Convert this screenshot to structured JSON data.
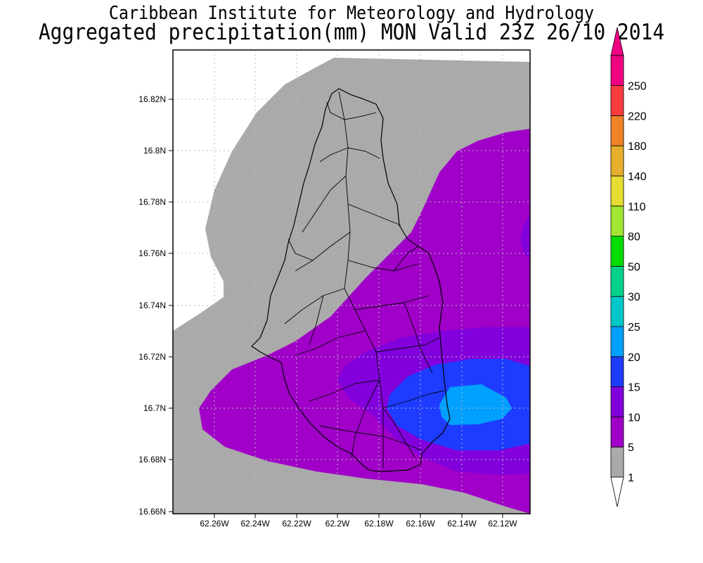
{
  "header": {
    "institute": "Caribbean Institute for Meteorology and Hydrology",
    "product": "Aggregated precipitation(mm) MON Valid 23Z 26/10 2014"
  },
  "map": {
    "y_ticks": [
      "16.82N",
      "16.8N",
      "16.78N",
      "16.76N",
      "16.74N",
      "16.72N",
      "16.7N",
      "16.68N",
      "16.66N"
    ],
    "x_ticks": [
      "62.26W",
      "62.24W",
      "62.22W",
      "62.2W",
      "62.18W",
      "62.16W",
      "62.14W",
      "62.12W"
    ]
  },
  "colorbar": {
    "levels": [
      {
        "label": "1",
        "color": "#aaaaaa"
      },
      {
        "label": "5",
        "color": "#a000c8"
      },
      {
        "label": "10",
        "color": "#8200dc"
      },
      {
        "label": "15",
        "color": "#1e3cff"
      },
      {
        "label": "20",
        "color": "#00a0ff"
      },
      {
        "label": "25",
        "color": "#00c8c8"
      },
      {
        "label": "30",
        "color": "#00d28c"
      },
      {
        "label": "50",
        "color": "#00dc00"
      },
      {
        "label": "80",
        "color": "#a0e632"
      },
      {
        "label": "110",
        "color": "#e6dc32"
      },
      {
        "label": "140",
        "color": "#e6af2d"
      },
      {
        "label": "180",
        "color": "#f08228"
      },
      {
        "label": "220",
        "color": "#fa3c3c"
      },
      {
        "label": "250",
        "color": "#f00082"
      }
    ]
  }
}
